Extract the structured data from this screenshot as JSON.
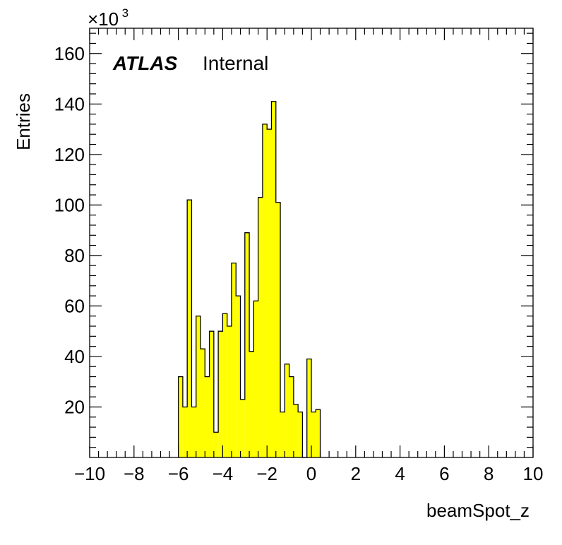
{
  "chart_data": {
    "type": "bar",
    "histogram": true,
    "xlabel": "beamSpot_z",
    "ylabel": "Entries",
    "y_multiplier_label": "×10",
    "y_multiplier_exponent": "3",
    "xlim": [
      -10,
      10
    ],
    "ylim": [
      0,
      170
    ],
    "bin_width": 0.2,
    "fill_color": "#ffff00",
    "line_color": "#000000",
    "x_ticks": [
      -10,
      -8,
      -6,
      -4,
      -2,
      0,
      2,
      4,
      6,
      8,
      10
    ],
    "x_tick_labels": [
      "−10",
      "−8",
      "−6",
      "−4",
      "−2",
      "0",
      "2",
      "4",
      "6",
      "8",
      "10"
    ],
    "y_ticks": [
      20,
      40,
      60,
      80,
      100,
      120,
      140,
      160
    ],
    "y_tick_labels": [
      "20",
      "40",
      "60",
      "80",
      "100",
      "120",
      "140",
      "160"
    ],
    "bins": [
      {
        "x": -6.0,
        "value": 32
      },
      {
        "x": -5.8,
        "value": 20
      },
      {
        "x": -5.6,
        "value": 102
      },
      {
        "x": -5.4,
        "value": 20
      },
      {
        "x": -5.2,
        "value": 56
      },
      {
        "x": -5.0,
        "value": 43
      },
      {
        "x": -4.8,
        "value": 32
      },
      {
        "x": -4.6,
        "value": 50
      },
      {
        "x": -4.4,
        "value": 10
      },
      {
        "x": -4.2,
        "value": 50
      },
      {
        "x": -4.0,
        "value": 57
      },
      {
        "x": -3.8,
        "value": 52
      },
      {
        "x": -3.6,
        "value": 77
      },
      {
        "x": -3.4,
        "value": 64
      },
      {
        "x": -3.2,
        "value": 23
      },
      {
        "x": -3.0,
        "value": 89
      },
      {
        "x": -2.8,
        "value": 42
      },
      {
        "x": -2.6,
        "value": 62
      },
      {
        "x": -2.4,
        "value": 103
      },
      {
        "x": -2.2,
        "value": 132
      },
      {
        "x": -2.0,
        "value": 130
      },
      {
        "x": -1.8,
        "value": 141
      },
      {
        "x": -1.6,
        "value": 101
      },
      {
        "x": -1.4,
        "value": 18
      },
      {
        "x": -1.2,
        "value": 37
      },
      {
        "x": -1.0,
        "value": 32
      },
      {
        "x": -0.8,
        "value": 21
      },
      {
        "x": -0.6,
        "value": 18
      },
      {
        "x": -0.4,
        "value": 0
      },
      {
        "x": -0.2,
        "value": 39
      },
      {
        "x": 0.0,
        "value": 18
      },
      {
        "x": 0.2,
        "value": 19
      }
    ]
  },
  "annotation": {
    "atlas": "ATLAS",
    "internal": "Internal"
  }
}
